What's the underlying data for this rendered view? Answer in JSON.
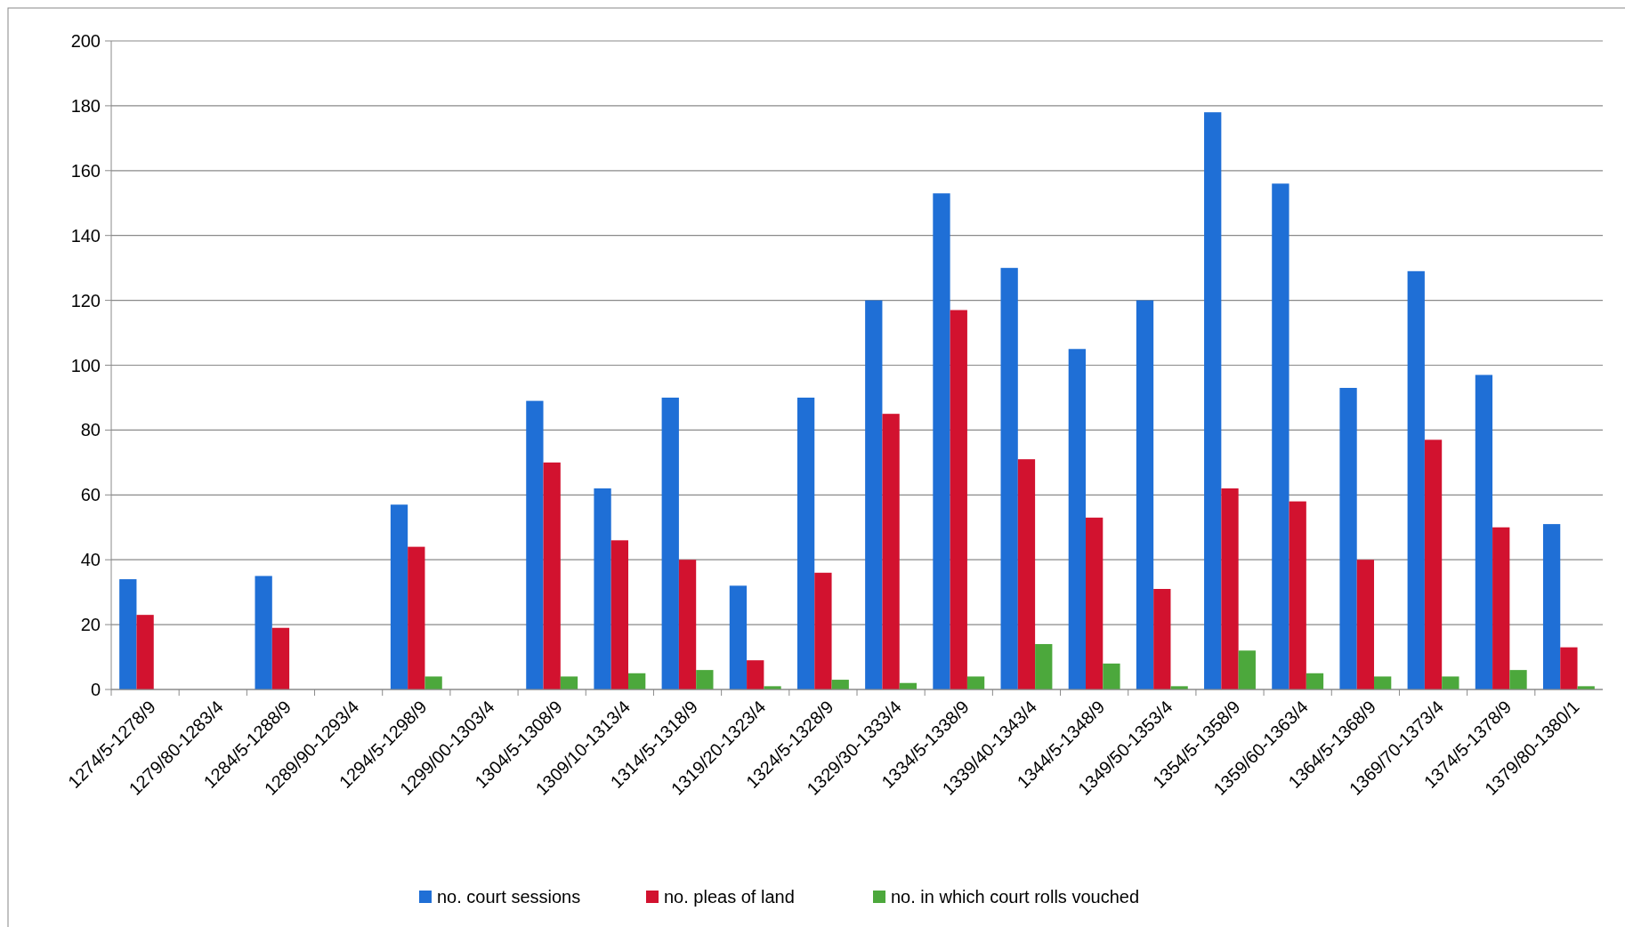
{
  "chart_data": {
    "type": "bar",
    "categories": [
      "1274/5-1278/9",
      "1279/80-1283/4",
      "1284/5-1288/9",
      "1289/90-1293/4",
      "1294/5-1298/9",
      "1299/00-1303/4",
      "1304/5-1308/9",
      "1309/10-1313/4",
      "1314/5-1318/9",
      "1319/20-1323/4",
      "1324/5-1328/9",
      "1329/30-1333/4",
      "1334/5-1338/9",
      "1339/40-1343/4",
      "1344/5-1348/9",
      "1349/50-1353/4",
      "1354/5-1358/9",
      "1359/60-1363/4",
      "1364/5-1368/9",
      "1369/70-1373/4",
      "1374/5-1378/9",
      "1379/80-1380/1"
    ],
    "series": [
      {
        "name": "no. court sessions",
        "color": "#1f6fd6",
        "values": [
          34,
          null,
          35,
          null,
          57,
          null,
          89,
          62,
          90,
          32,
          90,
          120,
          153,
          130,
          105,
          120,
          178,
          156,
          93,
          129,
          97,
          51
        ]
      },
      {
        "name": "no. pleas of land",
        "color": "#d2122f",
        "values": [
          23,
          null,
          19,
          null,
          44,
          null,
          70,
          46,
          40,
          9,
          36,
          85,
          117,
          71,
          53,
          31,
          62,
          58,
          40,
          77,
          50,
          13
        ]
      },
      {
        "name": "no. in which court rolls vouched",
        "color": "#4ca83c",
        "values": [
          null,
          null,
          null,
          null,
          4,
          null,
          4,
          5,
          6,
          1,
          3,
          2,
          4,
          14,
          8,
          1,
          12,
          5,
          4,
          4,
          6,
          1
        ]
      }
    ],
    "ylim": [
      0,
      200
    ],
    "yticks": [
      0,
      20,
      40,
      60,
      80,
      100,
      120,
      140,
      160,
      180,
      200
    ],
    "grid": "y",
    "legend": "bottom"
  }
}
